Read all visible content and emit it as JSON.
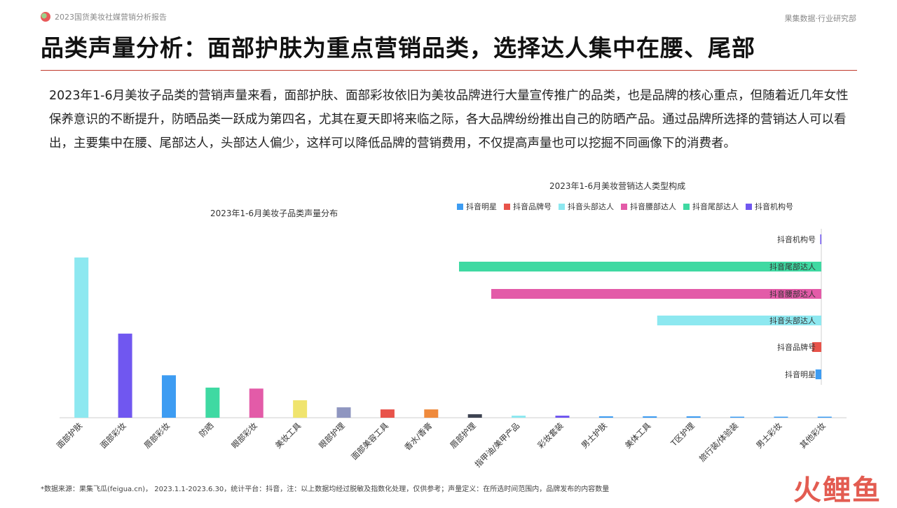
{
  "header": {
    "report_title": "2023国货美妆社媒营销分析报告",
    "brand": "果集数据·行业研究部"
  },
  "page_title": "品类声量分析：面部护肤为重点营销品类，选择达人集中在腰、尾部",
  "summary": "2023年1-6月美妆子品类的营销声量来看，面部护肤、面部彩妆依旧为美妆品牌进行大量宣传推广的品类，也是品牌的核心重点，但随着近几年女性保养意识的不断提升，防晒品类一跃成为第四名，尤其在夏天即将来临之际，各大品牌纷纷推出自己的防晒产品。通过品牌所选择的营销达人可以看出，主要集中在腰、尾部达人，头部达人偏少，这样可以降低品牌的营销费用，不仅提高声量也可以挖掘不同画像下的消费者。",
  "footnote": "*数据来源：果集飞瓜(feigua.cn)， 2023.1.1-2023.6.30，统计平台：抖音，注：以上数据均经过脱敏及指数化处理，仅供参考；声量定义：在所选时间范围内，品牌发布的内容数量",
  "watermark": "火鲤鱼",
  "chart_data": [
    {
      "type": "bar",
      "title": "2023年1-6月美妆子品类声量分布",
      "categories": [
        "面部护肤",
        "面部彩妆",
        "唇部彩妆",
        "防晒",
        "眼部彩妆",
        "美妆工具",
        "眼部护理",
        "面部美容工具",
        "香水/香膏",
        "唇部护理",
        "指甲油/美甲产品",
        "彩妆套装",
        "男士护肤",
        "美体工具",
        "T区护理",
        "旅行装/体验装",
        "男士彩妆",
        "其他彩妆"
      ],
      "values": [
        100,
        52.5,
        26.5,
        18.8,
        18.2,
        10.9,
        6.5,
        5.2,
        5.2,
        2.2,
        1.3,
        1.3,
        0.9,
        0.9,
        0.9,
        0.6,
        0.6,
        0.6
      ],
      "colors": [
        "#8de8f0",
        "#7057f0",
        "#3d9cf2",
        "#3fd9a2",
        "#e35ba8",
        "#f0e46e",
        "#8f96c0",
        "#e8534a",
        "#ef8a3c",
        "#3e4452",
        "#8de8f0",
        "#7057f0",
        "#3d9cf2",
        "#3d9cf2",
        "#3d9cf2",
        "#3d9cf2",
        "#3d9cf2",
        "#3d9cf2"
      ],
      "grid": false,
      "xlabel": "",
      "ylabel": ""
    },
    {
      "type": "bar",
      "orientation": "horizontal",
      "title": "2023年1-6月美妆营销达人类型构成",
      "categories": [
        "抖音机构号",
        "抖音尾部达人",
        "抖音腰部达人",
        "抖音头部达人",
        "抖音品牌号",
        "抖音明星"
      ],
      "series": [
        {
          "name": "抖音明星",
          "color": "#3d9cf2"
        },
        {
          "name": "抖音品牌号",
          "color": "#e8534a"
        },
        {
          "name": "抖音头部达人",
          "color": "#8de8f0"
        },
        {
          "name": "抖音腰部达人",
          "color": "#e35ba8"
        },
        {
          "name": "抖音尾部达人",
          "color": "#3fd9a2"
        },
        {
          "name": "抖音机构号",
          "color": "#7057f0"
        }
      ],
      "values": [
        0.3,
        100,
        91.1,
        45.3,
        2.5,
        1.6
      ],
      "bar_colors": [
        "#7057f0",
        "#3fd9a2",
        "#e35ba8",
        "#8de8f0",
        "#e8534a",
        "#3d9cf2"
      ],
      "legend_position": "top",
      "axis_side": "right"
    }
  ]
}
